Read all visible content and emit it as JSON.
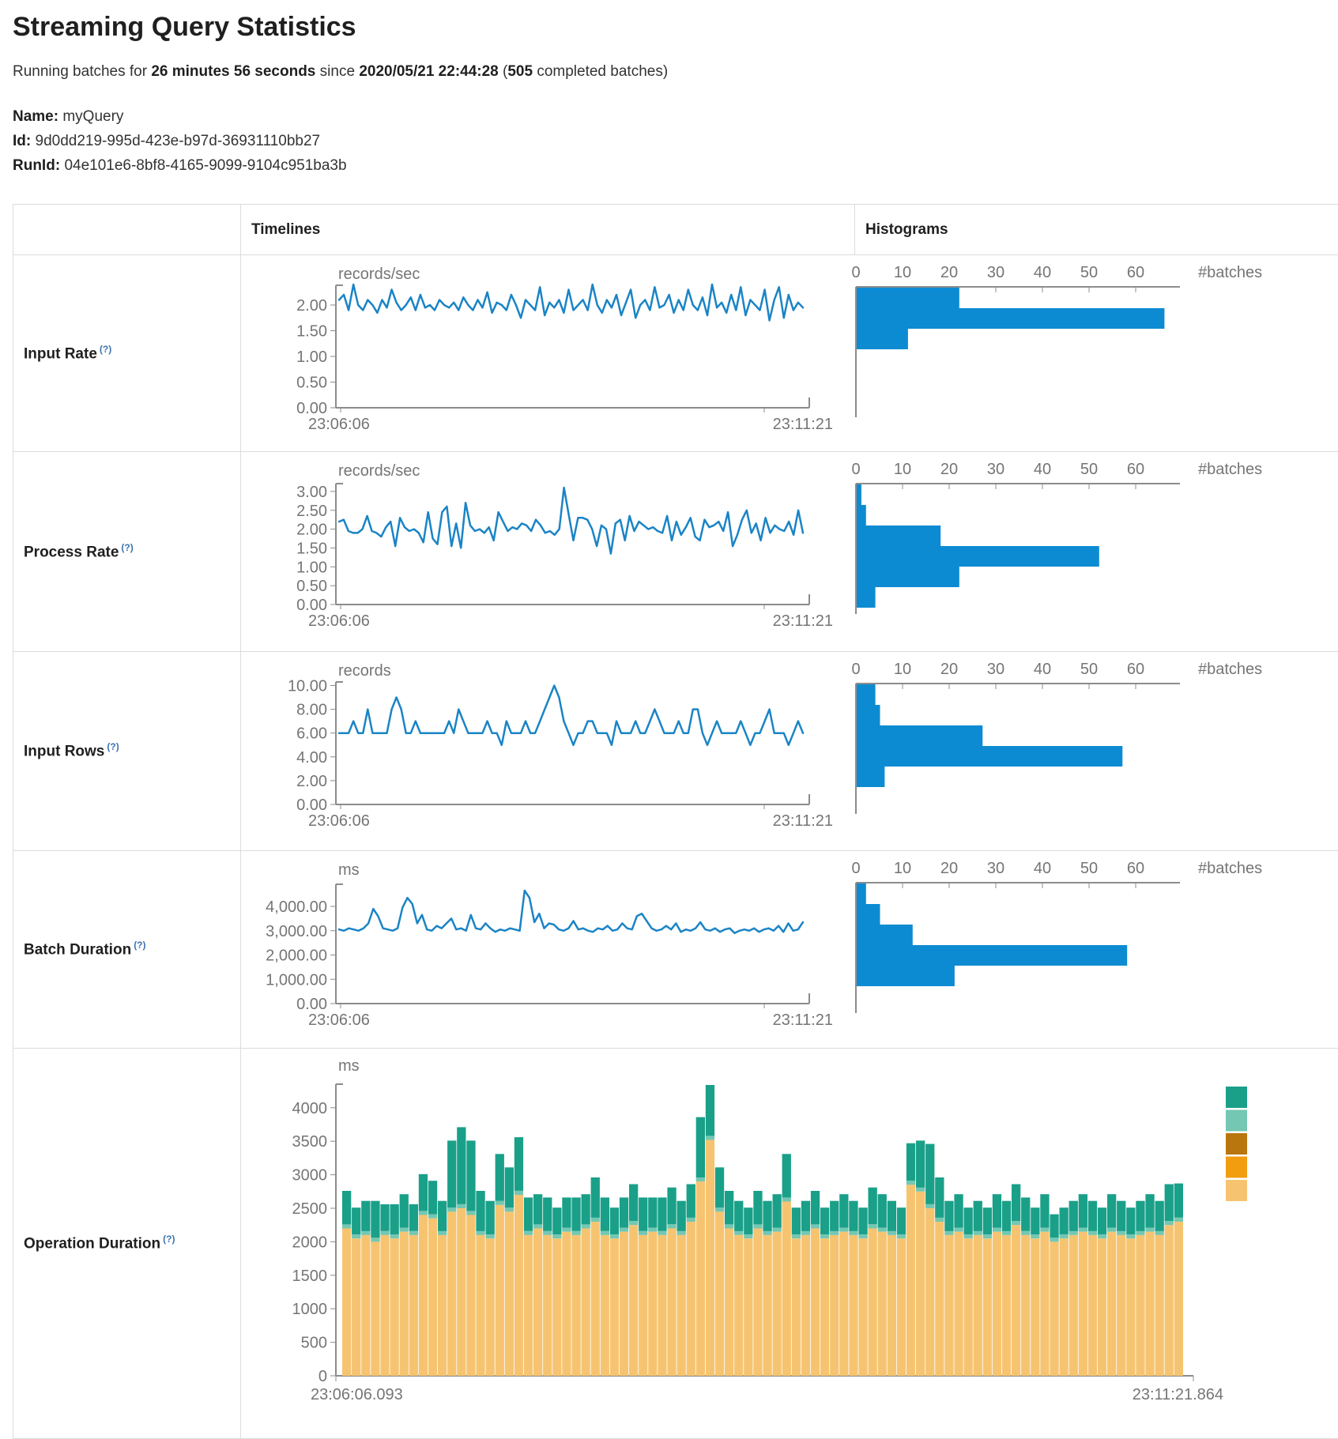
{
  "page": {
    "title": "Streaming Query Statistics",
    "subtitle": {
      "prefix": "Running batches for ",
      "duration": "26 minutes 56 seconds",
      "since": " since ",
      "start_time": "2020/05/21 22:44:28",
      "paren_open": " (",
      "completed_batches": "505",
      "suffix": " completed batches)"
    },
    "meta": {
      "name_label": "Name:",
      "name_value": "myQuery",
      "id_label": "Id:",
      "id_value": "9d0dd219-995d-423e-b97d-36931110bb27",
      "runid_label": "RunId:",
      "runid_value": "04e101e6-8bf8-4165-9099-9104c951ba3b"
    }
  },
  "table": {
    "header": {
      "timelines": "Timelines",
      "histograms": "Histograms"
    },
    "rows": [
      {
        "label": "Input Rate",
        "help": "(?)"
      },
      {
        "label": "Process Rate",
        "help": "(?)"
      },
      {
        "label": "Input Rows",
        "help": "(?)"
      },
      {
        "label": "Batch Duration",
        "help": "(?)"
      },
      {
        "label": "Operation Duration",
        "help": "(?)"
      }
    ]
  },
  "colors": {
    "timeline_line": "#1a84c5",
    "histogram_bar": "#0d8bd2",
    "axis_line": "#8c8c8c",
    "tick_text": "#757575",
    "help_blue": "#3b73af",
    "stack_top": "#1aa088",
    "stack_sliver": "#74c7b2",
    "stack_base": "#f6c471"
  },
  "chart_data": [
    {
      "row": "Input Rate",
      "timeline": {
        "type": "line",
        "title": "records/sec",
        "yticks": [
          {
            "v": 2,
            "l": "2.00"
          },
          {
            "v": 1.5,
            "l": "1.50"
          },
          {
            "v": 1,
            "l": "1.00"
          },
          {
            "v": 0.5,
            "l": "0.50"
          },
          {
            "v": 0,
            "l": "0.00"
          }
        ],
        "xlabels": [
          "23:06:06",
          "23:11:21"
        ],
        "values": [
          2.1,
          2.2,
          1.9,
          2.4,
          2.0,
          1.9,
          2.1,
          2.0,
          1.85,
          2.1,
          1.95,
          2.3,
          2.05,
          1.9,
          2.0,
          2.15,
          1.9,
          2.2,
          1.95,
          2.0,
          1.9,
          2.1,
          2.0,
          1.95,
          2.05,
          1.9,
          2.15,
          2.0,
          1.9,
          2.1,
          1.95,
          2.25,
          1.85,
          2.05,
          2.0,
          1.9,
          2.2,
          2.0,
          1.75,
          2.1,
          2.0,
          1.9,
          2.35,
          1.8,
          2.05,
          1.95,
          2.1,
          1.85,
          2.3,
          1.9,
          2.0,
          2.1,
          1.9,
          2.4,
          2.0,
          1.85,
          2.1,
          1.95,
          2.2,
          1.8,
          2.05,
          2.3,
          1.75,
          2.0,
          2.1,
          1.9,
          2.35,
          1.95,
          2.0,
          2.2,
          1.85,
          2.1,
          1.9,
          2.3,
          2.0,
          1.9,
          2.15,
          1.8,
          2.4,
          1.95,
          2.05,
          1.85,
          2.2,
          1.9,
          2.35,
          1.8,
          2.1,
          2.0,
          1.9,
          2.3,
          1.7,
          2.1,
          2.35,
          1.75,
          2.2,
          1.9,
          2.05,
          1.95
        ]
      },
      "histogram": {
        "type": "bar",
        "xticks": [
          "0",
          "10",
          "20",
          "30",
          "40",
          "50",
          "60"
        ],
        "xlabel": "#batches",
        "values": [
          22,
          66,
          11
        ]
      }
    },
    {
      "row": "Process Rate",
      "timeline": {
        "type": "line",
        "title": "records/sec",
        "yticks": [
          {
            "v": 3,
            "l": "3.00"
          },
          {
            "v": 2.5,
            "l": "2.50"
          },
          {
            "v": 2,
            "l": "2.00"
          },
          {
            "v": 1.5,
            "l": "1.50"
          },
          {
            "v": 1,
            "l": "1.00"
          },
          {
            "v": 0.5,
            "l": "0.50"
          },
          {
            "v": 0,
            "l": "0.00"
          }
        ],
        "xlabels": [
          "23:06:06",
          "23:11:21"
        ],
        "values": [
          2.2,
          2.25,
          1.95,
          1.9,
          1.9,
          2.0,
          2.35,
          1.95,
          1.9,
          1.8,
          2.05,
          2.2,
          1.55,
          2.3,
          2.05,
          1.95,
          2.0,
          1.9,
          1.65,
          2.45,
          1.75,
          1.6,
          2.45,
          2.6,
          1.55,
          2.15,
          1.5,
          2.7,
          2.1,
          1.95,
          2.0,
          1.9,
          2.05,
          1.7,
          2.45,
          2.2,
          1.95,
          2.05,
          2.0,
          2.15,
          2.1,
          1.95,
          2.25,
          2.1,
          1.9,
          1.95,
          1.85,
          2.0,
          3.1,
          2.4,
          1.7,
          2.3,
          2.3,
          2.25,
          2.0,
          1.55,
          2.1,
          2.0,
          1.35,
          2.15,
          2.25,
          1.7,
          2.35,
          1.95,
          2.2,
          2.1,
          2.0,
          2.05,
          1.95,
          1.9,
          2.35,
          1.7,
          2.2,
          1.85,
          2.05,
          2.3,
          1.8,
          1.7,
          2.25,
          2.05,
          2.1,
          2.2,
          1.95,
          2.45,
          1.55,
          1.85,
          2.25,
          2.5,
          1.9,
          2.15,
          1.7,
          2.3,
          1.9,
          2.1,
          2.0,
          1.95,
          2.2,
          1.85,
          2.5,
          1.9
        ]
      },
      "histogram": {
        "type": "bar",
        "xticks": [
          "0",
          "10",
          "20",
          "30",
          "40",
          "50",
          "60"
        ],
        "xlabel": "#batches",
        "values": [
          1,
          2,
          18,
          52,
          22,
          4
        ]
      }
    },
    {
      "row": "Input Rows",
      "timeline": {
        "type": "line",
        "title": "records",
        "yticks": [
          {
            "v": 10,
            "l": "10.00"
          },
          {
            "v": 8,
            "l": "8.00"
          },
          {
            "v": 6,
            "l": "6.00"
          },
          {
            "v": 4,
            "l": "4.00"
          },
          {
            "v": 2,
            "l": "2.00"
          },
          {
            "v": 0,
            "l": "0.00"
          }
        ],
        "xlabels": [
          "23:06:06",
          "23:11:21"
        ],
        "values": [
          6,
          6,
          6,
          7,
          6,
          6,
          8,
          6,
          6,
          6,
          6,
          8,
          9,
          8,
          6,
          6,
          7,
          6,
          6,
          6,
          6,
          6,
          6,
          7,
          6,
          8,
          7,
          6,
          6,
          6,
          6,
          7,
          6,
          6,
          5,
          7,
          6,
          6,
          6,
          7,
          6,
          6,
          7,
          8,
          9,
          10,
          9,
          7,
          6,
          5,
          6,
          6,
          7,
          7,
          6,
          6,
          6,
          5,
          7,
          6,
          6,
          6,
          7,
          6,
          6,
          7,
          8,
          7,
          6,
          6,
          6,
          7,
          6,
          6,
          8,
          8,
          6,
          5,
          6,
          7,
          6,
          6,
          6,
          6,
          7,
          6,
          5,
          6,
          6,
          7,
          8,
          6,
          6,
          6,
          5,
          6,
          7,
          6
        ]
      },
      "histogram": {
        "type": "bar",
        "xticks": [
          "0",
          "10",
          "20",
          "30",
          "40",
          "50",
          "60"
        ],
        "xlabel": "#batches",
        "values": [
          4,
          5,
          27,
          57,
          6
        ]
      }
    },
    {
      "row": "Batch Duration",
      "timeline": {
        "type": "line",
        "title": "ms",
        "yticks": [
          {
            "v": 4000,
            "l": "4,000.00"
          },
          {
            "v": 3000,
            "l": "3,000.00"
          },
          {
            "v": 2000,
            "l": "2,000.00"
          },
          {
            "v": 1000,
            "l": "1,000.00"
          },
          {
            "v": 0,
            "l": "0.00"
          }
        ],
        "xlabels": [
          "23:06:06",
          "23:11:21"
        ],
        "values": [
          3050,
          3000,
          3100,
          3050,
          3000,
          3100,
          3300,
          3900,
          3600,
          3100,
          3050,
          3000,
          3100,
          3950,
          4350,
          4100,
          3300,
          3650,
          3050,
          3000,
          3200,
          3100,
          3300,
          3500,
          3050,
          3100,
          3000,
          3650,
          3100,
          3050,
          3300,
          3100,
          2950,
          3050,
          3000,
          3100,
          3050,
          3000,
          4650,
          4350,
          3350,
          3700,
          3100,
          3300,
          3250,
          3050,
          3000,
          3100,
          3400,
          3050,
          3100,
          3000,
          2950,
          3100,
          3050,
          3200,
          3000,
          3050,
          3300,
          3100,
          3050,
          3600,
          3700,
          3400,
          3100,
          3000,
          3050,
          3200,
          3050,
          3300,
          2950,
          3050,
          3000,
          3100,
          3350,
          3050,
          3000,
          3100,
          2950,
          3050,
          3100,
          2900,
          3000,
          3050,
          3000,
          3100,
          2950,
          3050,
          3100,
          3000,
          3200,
          2950,
          3300,
          3000,
          3050,
          3350
        ]
      },
      "histogram": {
        "type": "bar",
        "xticks": [
          "0",
          "10",
          "20",
          "30",
          "40",
          "50",
          "60"
        ],
        "xlabel": "#batches",
        "values": [
          2,
          5,
          12,
          58,
          21
        ]
      }
    },
    {
      "row": "Operation Duration",
      "stacked": {
        "type": "bar",
        "title": "ms",
        "yticks": [
          {
            "v": 4000,
            "l": "4000"
          },
          {
            "v": 3500,
            "l": "3500"
          },
          {
            "v": 3000,
            "l": "3000"
          },
          {
            "v": 2500,
            "l": "2500"
          },
          {
            "v": 2000,
            "l": "2000"
          },
          {
            "v": 1500,
            "l": "1500"
          },
          {
            "v": 1000,
            "l": "1000"
          },
          {
            "v": 500,
            "l": "500"
          },
          {
            "v": 0,
            "l": "0"
          }
        ],
        "xlabels": [
          "23:06:06.093",
          "23:11:21.864"
        ],
        "legend_colors": [
          "#1aa088",
          "#74c7b2",
          "#ba760e",
          "#f29d10",
          "#f6c471"
        ],
        "sliver_value": 60,
        "series": [
          {
            "name": "base",
            "color": "#f6c471",
            "values": [
              2200,
              2050,
              2100,
              2000,
              2100,
              2050,
              2150,
              2100,
              2400,
              2350,
              2100,
              2450,
              2500,
              2400,
              2100,
              2050,
              2550,
              2450,
              2700,
              2100,
              2200,
              2100,
              2050,
              2150,
              2100,
              2200,
              2300,
              2100,
              2050,
              2150,
              2250,
              2100,
              2150,
              2100,
              2200,
              2100,
              2300,
              2900,
              3520,
              2450,
              2200,
              2100,
              2050,
              2200,
              2100,
              2150,
              2600,
              2050,
              2100,
              2200,
              2050,
              2100,
              2150,
              2100,
              2050,
              2200,
              2150,
              2100,
              2050,
              2850,
              2750,
              2500,
              2300,
              2100,
              2150,
              2050,
              2100,
              2050,
              2150,
              2100,
              2250,
              2100,
              2050,
              2150,
              2000,
              2050,
              2100,
              2150,
              2100,
              2050,
              2150,
              2100,
              2050,
              2100,
              2150,
              2100,
              2250,
              2300
            ]
          },
          {
            "name": "sliver",
            "color": "#74c7b2",
            "values": [
              60,
              60,
              60,
              60,
              60,
              60,
              60,
              60,
              60,
              60,
              60,
              60,
              60,
              60,
              60,
              60,
              60,
              60,
              60,
              60,
              60,
              60,
              60,
              60,
              60,
              60,
              60,
              60,
              60,
              60,
              60,
              60,
              60,
              60,
              60,
              60,
              60,
              60,
              60,
              60,
              60,
              60,
              60,
              60,
              60,
              60,
              60,
              60,
              60,
              60,
              60,
              60,
              60,
              60,
              60,
              60,
              60,
              60,
              60,
              60,
              60,
              60,
              60,
              60,
              60,
              60,
              60,
              60,
              60,
              60,
              60,
              60,
              60,
              60,
              60,
              60,
              60,
              60,
              60,
              60,
              60,
              60,
              60,
              60,
              60,
              60,
              60,
              60
            ]
          },
          {
            "name": "top",
            "color": "#1aa088",
            "values": [
              500,
              400,
              450,
              550,
              400,
              450,
              500,
              400,
              550,
              500,
              450,
              1000,
              1150,
              1050,
              600,
              500,
              700,
              600,
              800,
              500,
              450,
              500,
              400,
              450,
              500,
              450,
              600,
              500,
              400,
              450,
              550,
              500,
              450,
              500,
              550,
              450,
              500,
              900,
              760,
              600,
              500,
              450,
              400,
              500,
              450,
              500,
              650,
              400,
              450,
              500,
              400,
              450,
              500,
              450,
              400,
              550,
              500,
              450,
              400,
              560,
              700,
              900,
              600,
              450,
              500,
              400,
              450,
              400,
              500,
              450,
              550,
              500,
              400,
              500,
              350,
              400,
              450,
              500,
              450,
              400,
              500,
              450,
              400,
              450,
              500,
              450,
              550,
              510
            ]
          }
        ]
      }
    }
  ]
}
